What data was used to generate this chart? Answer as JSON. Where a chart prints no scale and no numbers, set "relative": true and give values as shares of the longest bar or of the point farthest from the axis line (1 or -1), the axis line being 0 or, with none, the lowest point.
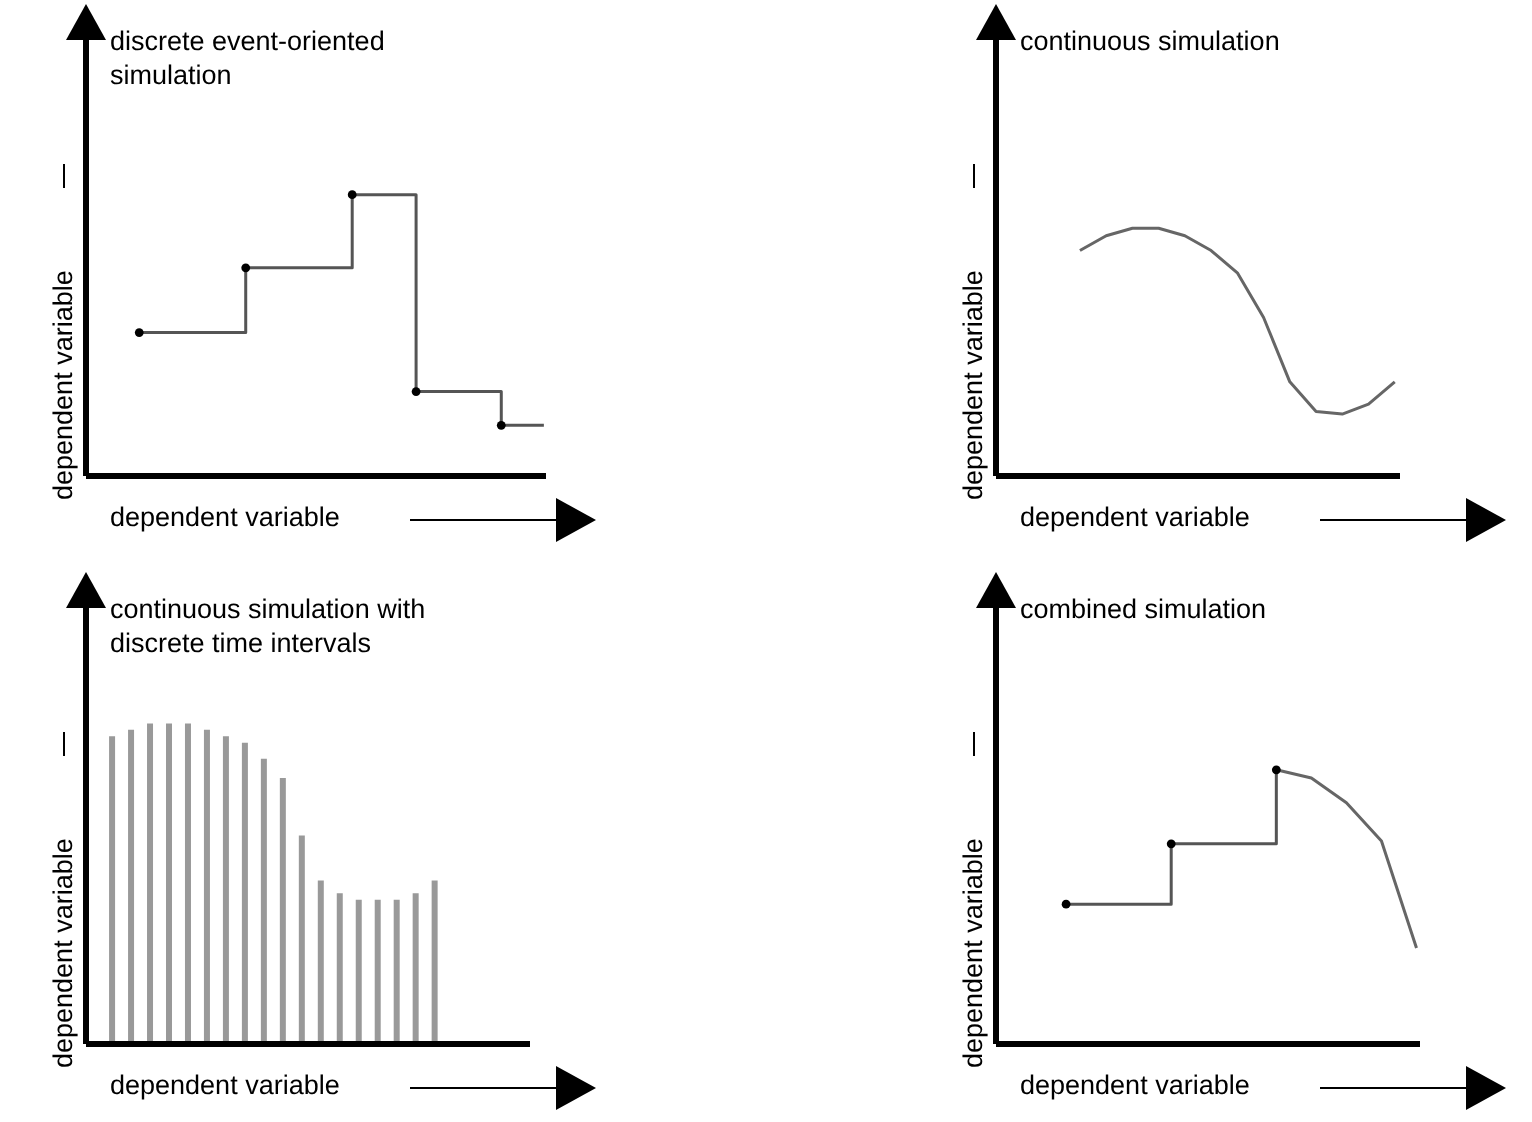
{
  "chart_data": [
    {
      "type": "step",
      "title": "discrete event-oriented simulation",
      "xlabel": "dependent variable",
      "ylabel": "dependent variable",
      "relative": true,
      "categories": [
        null,
        null,
        null,
        null,
        null,
        null,
        null,
        null,
        null,
        null,
        null,
        null,
        null,
        null,
        null,
        null,
        null,
        null,
        null,
        null
      ],
      "series": [
        {
          "color": "#555555",
          "marker": "circle",
          "values": [
            0.51,
            null,
            null,
            null,
            null,
            0.74,
            null,
            null,
            null,
            null,
            1,
            null,
            null,
            0.3,
            null,
            null,
            null,
            0.18,
            null,
            0.18
          ]
        }
      ]
    },
    {
      "type": "line",
      "title": "continuous simulation",
      "xlabel": "dependent variable",
      "ylabel": "dependent variable",
      "relative": true,
      "categories": [
        null,
        null,
        null,
        null,
        null,
        null,
        null,
        null,
        null,
        null,
        null,
        null,
        null
      ],
      "series": [
        {
          "color": "#666666",
          "values": [
            0.91,
            0.97,
            1,
            1,
            0.97,
            0.91,
            0.82,
            0.64,
            0.38,
            0.26,
            0.25,
            0.29,
            0.38
          ]
        }
      ]
    },
    {
      "type": "bar",
      "title": "continuous simulation with discrete time intervals",
      "xlabel": "dependent variable",
      "ylabel": "dependent variable",
      "relative": true,
      "categories": [
        null,
        null,
        null,
        null,
        null,
        null,
        null,
        null,
        null,
        null,
        null,
        null,
        null,
        null,
        null,
        null,
        null,
        null
      ],
      "series": [
        {
          "color": "#999999",
          "values": [
            0.96,
            0.98,
            1,
            1,
            1,
            0.98,
            0.96,
            0.94,
            0.89,
            0.83,
            0.65,
            0.51,
            0.47,
            0.45,
            0.45,
            0.45,
            0.47,
            0.51
          ]
        }
      ]
    },
    {
      "type": "line",
      "title": "combined simulation",
      "xlabel": "dependent variable",
      "ylabel": "dependent variable",
      "relative": true,
      "categories": [
        null,
        null,
        null,
        null,
        null,
        null,
        null,
        null,
        null,
        null,
        null
      ],
      "series": [
        {
          "type": "step",
          "color": "#555555",
          "marker": "circle",
          "values": [
            0.51,
            null,
            null,
            0.73,
            null,
            null,
            1,
            null,
            null,
            null,
            null
          ]
        },
        {
          "color": "#666666",
          "values": [
            null,
            null,
            null,
            null,
            null,
            null,
            1,
            0.97,
            0.88,
            0.74,
            0.35
          ]
        }
      ]
    }
  ]
}
